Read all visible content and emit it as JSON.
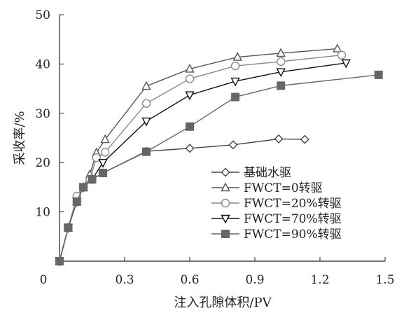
{
  "chart_data": {
    "type": "line",
    "title": "",
    "xlabel": "注入孔隙体积/PV",
    "ylabel": "采收率/%",
    "xlim": [
      0,
      1.5
    ],
    "ylim": [
      0,
      50
    ],
    "x_ticks": [
      0,
      0.3,
      0.6,
      0.9,
      1.2,
      1.5
    ],
    "x_tick_labels": [
      "0",
      "0.3",
      "0.6",
      "0.9",
      "1.2",
      "1.5"
    ],
    "y_ticks": [
      10,
      20,
      30,
      40,
      50
    ],
    "y_tick_labels": [
      "10",
      "20",
      "30",
      "40",
      "50"
    ],
    "grid": false,
    "legend_position": "bottom-right",
    "series": [
      {
        "name": "基础水驱",
        "marker": "diamond-open",
        "color": "#444444",
        "x": [
          0.0,
          0.04,
          0.08,
          0.11,
          0.15,
          0.2,
          0.4,
          0.6,
          0.8,
          1.01,
          1.13
        ],
        "y": [
          0.0,
          6.8,
          12.1,
          15.0,
          16.6,
          17.9,
          22.3,
          22.9,
          23.6,
          24.8,
          24.7
        ]
      },
      {
        "name": "FWCT=0转驱",
        "marker": "triangle-up-open",
        "color": "#555555",
        "x": [
          0.0,
          0.04,
          0.08,
          0.11,
          0.14,
          0.17,
          0.21,
          0.4,
          0.6,
          0.82,
          1.02,
          1.28
        ],
        "y": [
          0.0,
          6.8,
          12.1,
          15.0,
          17.6,
          22.0,
          24.7,
          35.5,
          39.0,
          41.4,
          42.2,
          43.1
        ]
      },
      {
        "name": "FWCT=20%转驱",
        "marker": "circle-open",
        "color": "#8a8a8a",
        "x": [
          0.0,
          0.04,
          0.08,
          0.11,
          0.14,
          0.17,
          0.21,
          0.4,
          0.6,
          0.81,
          1.02,
          1.3
        ],
        "y": [
          0.0,
          6.8,
          13.2,
          15.0,
          16.6,
          21.0,
          22.1,
          32.0,
          37.0,
          39.6,
          40.5,
          41.8
        ]
      },
      {
        "name": "FWCT=70%转驱",
        "marker": "triangle-down-open",
        "color": "#111111",
        "x": [
          0.0,
          0.04,
          0.08,
          0.11,
          0.15,
          0.2,
          0.4,
          0.6,
          0.81,
          1.02,
          1.32
        ],
        "y": [
          0.0,
          6.8,
          12.1,
          15.0,
          16.6,
          20.0,
          28.4,
          33.7,
          36.5,
          38.4,
          40.2
        ]
      },
      {
        "name": "FWCT=90%转驱",
        "marker": "square-filled",
        "color": "#666666",
        "x": [
          0.0,
          0.04,
          0.08,
          0.11,
          0.15,
          0.2,
          0.4,
          0.6,
          0.81,
          1.02,
          1.47
        ],
        "y": [
          0.0,
          6.8,
          12.1,
          15.0,
          16.6,
          17.9,
          22.2,
          27.3,
          33.3,
          35.6,
          37.8
        ]
      }
    ]
  }
}
